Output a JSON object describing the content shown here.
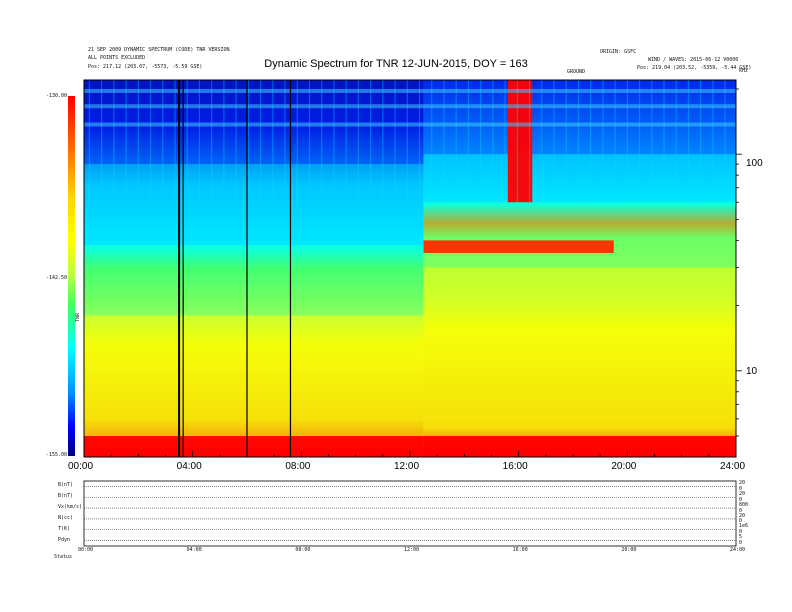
{
  "header": {
    "left_lines": [
      "21 SEP 2009 DYNAMIC SPECTRUM (CODE) TNR VERSION",
      "ALL POINTS EXCLUDED"
    ],
    "left_pos": "Pos: 217.12 (203.07, -5573, -5.59 GSE)",
    "right_top": "ORIGIN: GSFC",
    "right_line2": "WIND / WAVES: 2015-06-12 V0000",
    "right_pos": "Pos: 219.04 (203.52, -5359, -5.44 GSE)",
    "right_mid": "GROUND",
    "right_corner": "kHz",
    "title": "Dynamic Spectrum for TNR 12-JUN-2015, DOY = 163"
  },
  "colorbar": {
    "unit": "TNR",
    "ticks": [
      "-130.00",
      "-142.50",
      "-155.00"
    ]
  },
  "chart_data": {
    "type": "heatmap",
    "title": "Dynamic Spectrum for TNR 12-JUN-2015, DOY = 163",
    "x_ticks": [
      "00:00",
      "04:00",
      "08:00",
      "12:00",
      "16:00",
      "20:00",
      "24:00"
    ],
    "x_range_hours": [
      0,
      24
    ],
    "y_scale": "log",
    "y_range_khz": [
      4,
      220
    ],
    "y_ticks": [
      "100",
      "10"
    ],
    "z_range": [
      -155.0,
      -130.0
    ],
    "z_ticks": [
      -130.0,
      -142.5,
      -155.0
    ],
    "black_gaps_hours": [
      3.5,
      3.65,
      6.0,
      7.6
    ],
    "bands": [
      {
        "hours": [
          0,
          12.5
        ],
        "low_khz": 4,
        "high_khz": 5,
        "level": -130
      },
      {
        "hours": [
          0,
          12.5
        ],
        "low_khz": 5,
        "high_khz": 18,
        "level": -139
      },
      {
        "hours": [
          0,
          12.5
        ],
        "low_khz": 18,
        "high_khz": 38,
        "level": -144
      },
      {
        "hours": [
          0,
          12.5
        ],
        "low_khz": 38,
        "high_khz": 90,
        "level": -148
      },
      {
        "hours": [
          0,
          12.5
        ],
        "low_khz": 90,
        "high_khz": 220,
        "level": -152
      },
      {
        "hours": [
          12.5,
          24
        ],
        "low_khz": 4,
        "high_khz": 5,
        "level": -130
      },
      {
        "hours": [
          12.5,
          24
        ],
        "low_khz": 5,
        "high_khz": 30,
        "level": -139
      },
      {
        "hours": [
          12.5,
          24
        ],
        "low_khz": 30,
        "high_khz": 60,
        "level": -144
      },
      {
        "hours": [
          12.5,
          24
        ],
        "low_khz": 60,
        "high_khz": 100,
        "level": -148
      },
      {
        "hours": [
          12.5,
          24
        ],
        "low_khz": 100,
        "high_khz": 220,
        "level": -152
      },
      {
        "hours": [
          15.6,
          16.5
        ],
        "low_khz": 60,
        "high_khz": 220,
        "level": -130
      },
      {
        "hours": [
          12.5,
          19.5
        ],
        "low_khz": 35,
        "high_khz": 40,
        "level": -131
      }
    ]
  },
  "panels": {
    "rows": [
      {
        "label": "B(nT)",
        "right": [
          "20",
          "0"
        ]
      },
      {
        "label": "B(nT)",
        "right": [
          "20",
          "0"
        ]
      },
      {
        "label": "Vx(km/s)",
        "right": [
          "800",
          "0"
        ]
      },
      {
        "label": "N(cc)",
        "right": [
          "20",
          "0"
        ]
      },
      {
        "label": "T(K)",
        "right": [
          "1e6",
          "0"
        ]
      },
      {
        "label": "Pdyn",
        "right": [
          "5",
          "0"
        ]
      }
    ],
    "x_ticks": [
      "00:00",
      "04:00",
      "08:00",
      "12:00",
      "16:00",
      "20:00",
      "24:00"
    ],
    "footer_label": "Status"
  }
}
